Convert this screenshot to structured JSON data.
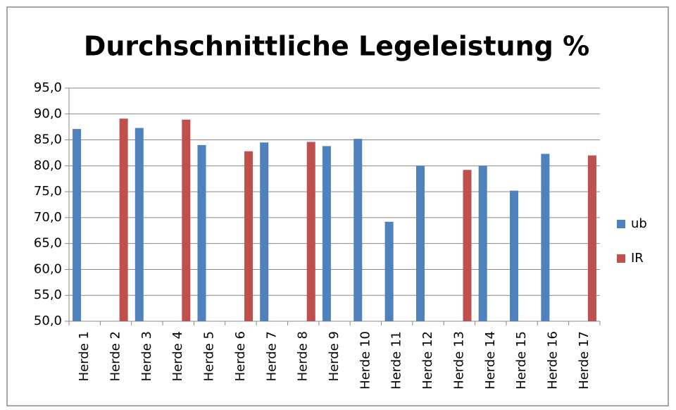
{
  "chart_data": {
    "type": "bar",
    "title": "Durchschnittliche Legeleistung %",
    "categories": [
      "Herde 1",
      "Herde 2",
      "Herde 3",
      "Herde 4",
      "Herde 5",
      "Herde 6",
      "Herde 7",
      "Herde 8",
      "Herde 9",
      "Herde 10",
      "Herde 11",
      "Herde 12",
      "Herde 13",
      "Herde 14",
      "Herde 15",
      "Herde 16",
      "Herde 17"
    ],
    "series": [
      {
        "name": "ub",
        "color": "#4f81bd",
        "values": [
          87.1,
          null,
          87.3,
          null,
          84.0,
          null,
          84.5,
          null,
          83.8,
          85.2,
          69.2,
          80.0,
          null,
          80.0,
          75.2,
          82.3,
          null
        ]
      },
      {
        "name": "IR",
        "color": "#c0504d",
        "values": [
          null,
          89.1,
          null,
          88.9,
          null,
          82.8,
          null,
          84.6,
          null,
          null,
          null,
          null,
          79.2,
          null,
          null,
          null,
          82.0
        ]
      }
    ],
    "ylim": [
      50,
      95
    ],
    "yticks": [
      {
        "value": 50,
        "label": "50,0"
      },
      {
        "value": 55,
        "label": "55,0"
      },
      {
        "value": 60,
        "label": "60,0"
      },
      {
        "value": 65,
        "label": "65,0"
      },
      {
        "value": 70,
        "label": "70,0"
      },
      {
        "value": 75,
        "label": "75,0"
      },
      {
        "value": 80,
        "label": "80,0"
      },
      {
        "value": 85,
        "label": "85,0"
      },
      {
        "value": 90,
        "label": "90,0"
      },
      {
        "value": 95,
        "label": "95,0"
      }
    ],
    "grid": true,
    "legend": "right"
  }
}
